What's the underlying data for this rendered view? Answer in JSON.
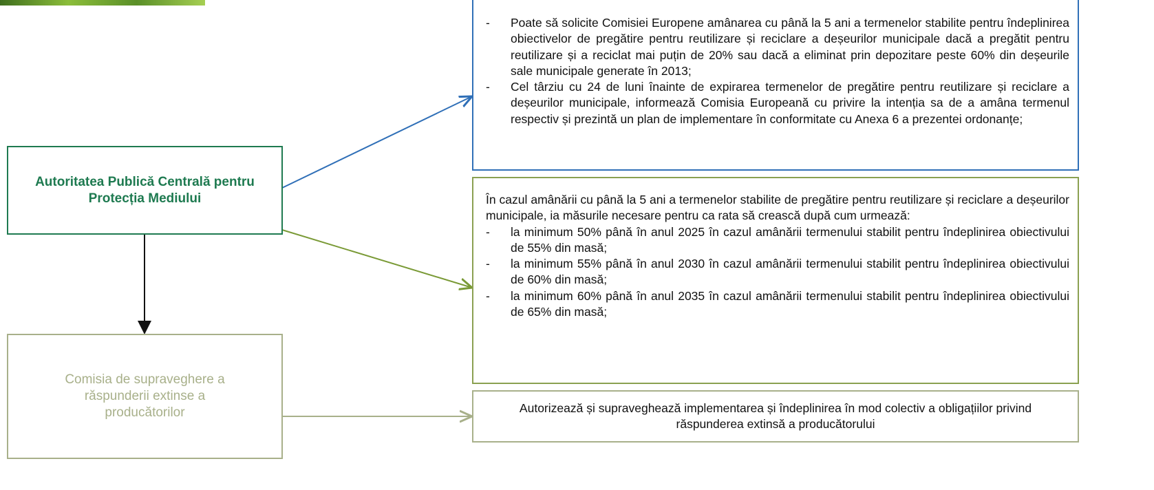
{
  "nodes": [
    {
      "label": "Autoritatea Publică Centrală pentru Protecția Mediului"
    },
    {
      "label": "Comisia de supraveghere a răspunderii extinse a producătorilor"
    }
  ],
  "panels": [
    {
      "items": [
        "Poate să solicite Comisiei Europene amânarea cu până la 5 ani a termenelor stabilite pentru îndeplinirea obiectivelor de pregătire pentru reutilizare și reciclare a deșeurilor municipale dacă a pregătit pentru reutilizare și a reciclat mai puțin de 20% sau dacă a eliminat prin depozitare peste 60% din deșeurile sale municipale generate în 2013;",
        "Cel târziu cu 24 de luni înainte de expirarea termenelor de pregătire pentru reutilizare și reciclare a deșeurilor municipale, informează Comisia Europeană cu privire la intenția sa de a amâna termenul respectiv și prezintă un plan de implementare în conformitate cu Anexa 6 a prezentei ordonanțe;"
      ]
    },
    {
      "intro": "În cazul amânării cu până la 5 ani a termenelor stabilite de pregătire pentru reutilizare și reciclare a deșeurilor municipale, ia măsurile necesare pentru ca rata să crească după cum urmează:",
      "items": [
        "la minimum 50% până în anul 2025 în cazul amânării termenului stabilit pentru îndeplinirea obiectivului de 55% din masă;",
        "la minimum 55% până în anul 2030 în cazul amânării termenului stabilit pentru îndeplinirea obiectivului de 60% din masă;",
        "la minimum 60% până în anul 2035 în cazul amânării termenului stabilit pentru îndeplinirea obiectivului de 65% din masă;"
      ]
    },
    {
      "text": "Autorizează și supraveghează implementarea și îndeplinirea în mod colectiv a obligațiilor privind răspunderea extinsă a producătorului"
    }
  ]
}
